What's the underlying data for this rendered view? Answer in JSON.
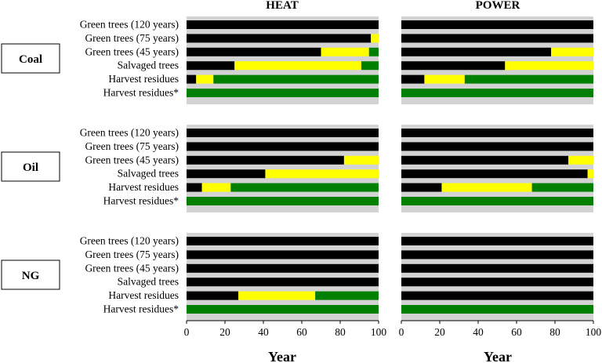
{
  "columns": [
    "HEAT",
    "POWER"
  ],
  "rows": [
    "Coal",
    "Oil",
    "NG"
  ],
  "categories": [
    "Green trees (120 years)",
    "Green trees (75 years)",
    "Green trees (45 years)",
    "Salvaged trees",
    "Harvest residues",
    "Harvest residues*"
  ],
  "xlabel": "Year",
  "xticks": [
    0,
    20,
    40,
    60,
    80,
    100
  ],
  "colors": {
    "black": "#000000",
    "yellow": "#ffff00",
    "green": "#008000",
    "panel": "#d3d3d3"
  },
  "chart_data": {
    "type": "bar",
    "xlim": [
      0,
      100
    ],
    "segment_order": [
      "black",
      "yellow",
      "green"
    ],
    "panels": [
      {
        "row": "Coal",
        "column": "HEAT",
        "bars": [
          [
            100,
            0,
            0
          ],
          [
            96,
            4,
            0
          ],
          [
            70,
            25,
            5
          ],
          [
            25,
            66,
            9
          ],
          [
            5,
            9,
            86
          ],
          [
            0,
            0,
            100
          ]
        ]
      },
      {
        "row": "Coal",
        "column": "POWER",
        "bars": [
          [
            100,
            0,
            0
          ],
          [
            100,
            0,
            0
          ],
          [
            78,
            22,
            0
          ],
          [
            54,
            46,
            0
          ],
          [
            12,
            21,
            67
          ],
          [
            0,
            0,
            100
          ]
        ]
      },
      {
        "row": "Oil",
        "column": "HEAT",
        "bars": [
          [
            100,
            0,
            0
          ],
          [
            100,
            0,
            0
          ],
          [
            82,
            18,
            0
          ],
          [
            41,
            59,
            0
          ],
          [
            8,
            15,
            77
          ],
          [
            0,
            0,
            100
          ]
        ]
      },
      {
        "row": "Oil",
        "column": "POWER",
        "bars": [
          [
            100,
            0,
            0
          ],
          [
            100,
            0,
            0
          ],
          [
            87,
            13,
            0
          ],
          [
            97,
            3,
            0
          ],
          [
            21,
            47,
            32
          ],
          [
            0,
            0,
            100
          ]
        ]
      },
      {
        "row": "NG",
        "column": "HEAT",
        "bars": [
          [
            100,
            0,
            0
          ],
          [
            100,
            0,
            0
          ],
          [
            100,
            0,
            0
          ],
          [
            100,
            0,
            0
          ],
          [
            27,
            40,
            33
          ],
          [
            0,
            0,
            100
          ]
        ]
      },
      {
        "row": "NG",
        "column": "POWER",
        "bars": [
          [
            100,
            0,
            0
          ],
          [
            100,
            0,
            0
          ],
          [
            100,
            0,
            0
          ],
          [
            100,
            0,
            0
          ],
          [
            100,
            0,
            0
          ],
          [
            0,
            0,
            100
          ]
        ]
      }
    ]
  }
}
